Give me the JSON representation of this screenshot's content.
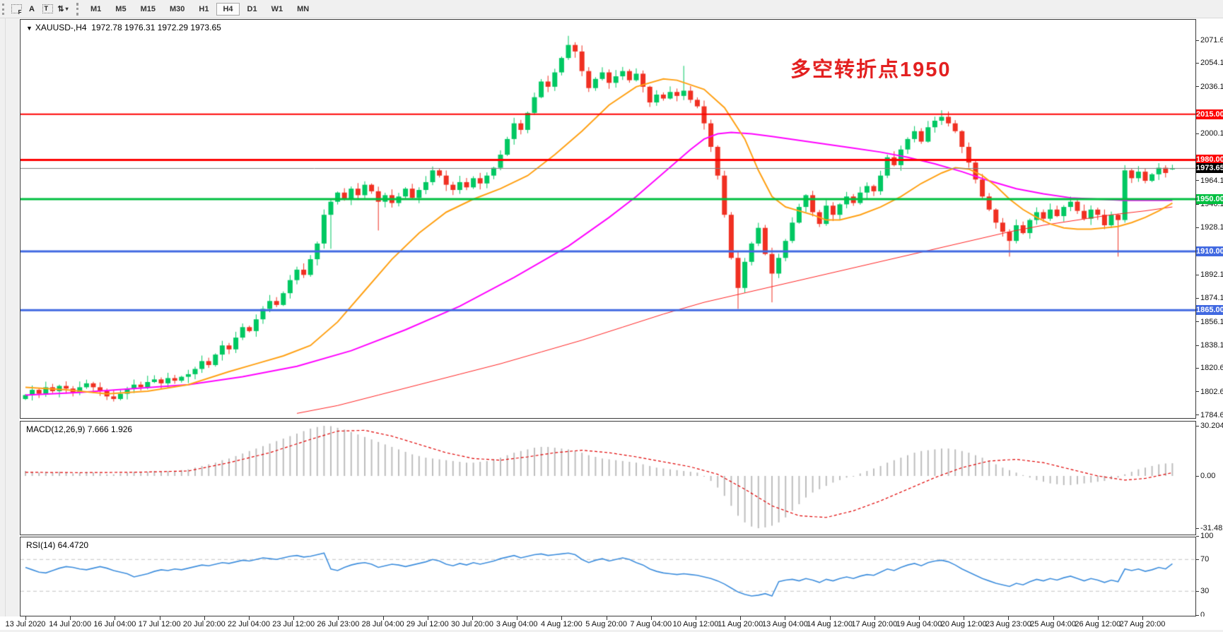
{
  "toolbar": {
    "grid_f_icon_label": "F",
    "letter_a_icon_label": "A",
    "text_t_icon_label": "T",
    "arrows_icon_glyph": "⇅",
    "dropdown_glyph": "▾",
    "timeframes": [
      "M1",
      "M5",
      "M15",
      "M30",
      "H1",
      "H4",
      "D1",
      "W1",
      "MN"
    ],
    "active_timeframe": "H4"
  },
  "chart": {
    "symbol_dropdown_glyph": "▼",
    "title_symbol": "XAUUSD-,H4",
    "title_values": "1972.78 1976.31 1972.29 1973.65",
    "annotation": {
      "text": "多空转折点1950",
      "color": "#e32020"
    }
  },
  "chart_data": {
    "type": "candlestick",
    "symbol": "XAUUSD-",
    "timeframe": "H4",
    "current_bar": {
      "open": 1972.78,
      "high": 1976.31,
      "low": 1972.29,
      "close": 1973.65
    },
    "price_axis_ticks": [
      "2071.60",
      "2054.10",
      "2036.10",
      "2000.10",
      "1964.10",
      "1946.10",
      "1928.10",
      "1892.10",
      "1874.10",
      "1856.10",
      "1838.10",
      "1820.60",
      "1802.60",
      "1784.60"
    ],
    "time_axis_labels": [
      "13 Jul 2020",
      "14 Jul 20:00",
      "16 Jul 04:00",
      "17 Jul 12:00",
      "20 Jul 20:00",
      "22 Jul 04:00",
      "23 Jul 12:00",
      "26 Jul 23:00",
      "28 Jul 04:00",
      "29 Jul 12:00",
      "30 Jul 20:00",
      "3 Aug 04:00",
      "4 Aug 12:00",
      "5 Aug 20:00",
      "7 Aug 04:00",
      "10 Aug 12:00",
      "11 Aug 20:00",
      "13 Aug 04:00",
      "14 Aug 12:00",
      "17 Aug 20:00",
      "19 Aug 04:00",
      "20 Aug 12:00",
      "23 Aug 23:00",
      "25 Aug 04:00",
      "26 Aug 12:00",
      "27 Aug 20:00"
    ],
    "horizontal_lines": [
      {
        "label": "2015.00",
        "price": 2015.0,
        "color": "#fe0000",
        "width": 2
      },
      {
        "label": "1980.00",
        "price": 1980.0,
        "color": "#fe0000",
        "width": 3
      },
      {
        "label": "1950.00",
        "price": 1950.0,
        "color": "#00bf40",
        "width": 3
      },
      {
        "label": "1910.00",
        "price": 1910.0,
        "color": "#4169e1",
        "width": 3
      },
      {
        "label": "1865.00",
        "price": 1865.0,
        "color": "#4169e1",
        "width": 3
      }
    ],
    "bid_line": {
      "label": "1973.65",
      "price": 1973.65,
      "line_color": "#7f7f7f",
      "badge_color": "#000000"
    },
    "candle_up_color": "#00c862",
    "candle_down_color": "#f03022",
    "candles": {
      "first_open": 1797,
      "closes": [
        1800,
        1804,
        1801,
        1806,
        1803,
        1807,
        1805,
        1802,
        1806,
        1809,
        1806,
        1803,
        1799,
        1797,
        1801,
        1805,
        1808,
        1806,
        1810,
        1812,
        1809,
        1813,
        1811,
        1814,
        1816,
        1820,
        1826,
        1823,
        1831,
        1838,
        1835,
        1844,
        1852,
        1849,
        1858,
        1866,
        1872,
        1869,
        1878,
        1888,
        1896,
        1892,
        1904,
        1916,
        1938,
        1948,
        1955,
        1950,
        1958,
        1953,
        1961,
        1956,
        1948,
        1953,
        1947,
        1952,
        1958,
        1951,
        1957,
        1963,
        1972,
        1968,
        1961,
        1957,
        1963,
        1959,
        1966,
        1962,
        1968,
        1974,
        1984,
        1996,
        2008,
        2003,
        2016,
        2028,
        2040,
        2036,
        2047,
        2058,
        2068,
        2063,
        2048,
        2035,
        2042,
        2047,
        2039,
        2044,
        2048,
        2041,
        2046,
        2036,
        2024,
        2030,
        2027,
        2032,
        2029,
        2033,
        2026,
        2021,
        2008,
        1990,
        1968,
        1938,
        1905,
        1882,
        1902,
        1916,
        1928,
        1908,
        1893,
        1905,
        1918,
        1932,
        1944,
        1953,
        1940,
        1931,
        1945,
        1938,
        1946,
        1952,
        1947,
        1955,
        1960,
        1956,
        1968,
        1982,
        1976,
        1988,
        1996,
        2002,
        1994,
        2005,
        2010,
        2013,
        2008,
        2002,
        1990,
        1978,
        1965,
        1952,
        1942,
        1932,
        1925,
        1918,
        1930,
        1924,
        1934,
        1940,
        1935,
        1942,
        1937,
        1944,
        1948,
        1941,
        1935,
        1942,
        1938,
        1930,
        1938,
        1934,
        1972,
        1966,
        1971,
        1964,
        1969,
        1974,
        1970,
        1973.65
      ],
      "overrides": {
        "45": {
          "low": 1912
        },
        "52": {
          "low": 1926
        },
        "80": {
          "high": 2075
        },
        "97": {
          "high": 2052
        },
        "105": {
          "low": 1866
        },
        "110": {
          "low": 1871
        },
        "135": {
          "high": 2018
        },
        "145": {
          "low": 1906
        },
        "161": {
          "low": 1906
        },
        "162": {
          "low": 1932,
          "high": 1976
        },
        "169": {
          "open": 1972.78,
          "high": 1976.31,
          "low": 1972.29
        }
      }
    },
    "moving_averages": [
      {
        "name": "fast-ma-orange",
        "color": "#ffa013",
        "width": 2,
        "points": [
          [
            0,
            1806
          ],
          [
            6,
            1804
          ],
          [
            12,
            1801
          ],
          [
            18,
            1803
          ],
          [
            24,
            1808
          ],
          [
            30,
            1818
          ],
          [
            34,
            1824
          ],
          [
            38,
            1830
          ],
          [
            42,
            1838
          ],
          [
            46,
            1856
          ],
          [
            50,
            1880
          ],
          [
            54,
            1904
          ],
          [
            58,
            1924
          ],
          [
            62,
            1940
          ],
          [
            66,
            1950
          ],
          [
            70,
            1958
          ],
          [
            74,
            1968
          ],
          [
            78,
            1984
          ],
          [
            82,
            2002
          ],
          [
            86,
            2022
          ],
          [
            90,
            2036
          ],
          [
            94,
            2042
          ],
          [
            96,
            2041
          ],
          [
            100,
            2034
          ],
          [
            103,
            2020
          ],
          [
            106,
            1996
          ],
          [
            108,
            1972
          ],
          [
            110,
            1952
          ],
          [
            112,
            1944
          ],
          [
            114,
            1941
          ],
          [
            116,
            1938
          ],
          [
            118,
            1934
          ],
          [
            120,
            1934
          ],
          [
            123,
            1938
          ],
          [
            126,
            1944
          ],
          [
            129,
            1952
          ],
          [
            132,
            1962
          ],
          [
            135,
            1970
          ],
          [
            137,
            1974
          ],
          [
            139,
            1973
          ],
          [
            141,
            1968
          ],
          [
            143,
            1960
          ],
          [
            145,
            1950
          ],
          [
            147,
            1942
          ],
          [
            149,
            1936
          ],
          [
            151,
            1931
          ],
          [
            153,
            1928
          ],
          [
            155,
            1927
          ],
          [
            157,
            1927
          ],
          [
            159,
            1928
          ],
          [
            161,
            1929
          ],
          [
            163,
            1932
          ],
          [
            165,
            1936
          ],
          [
            167,
            1941
          ],
          [
            169,
            1947
          ]
        ]
      },
      {
        "name": "mid-ma-magenta",
        "color": "#ff00ff",
        "width": 2,
        "points": [
          [
            0,
            1800
          ],
          [
            8,
            1802
          ],
          [
            16,
            1805
          ],
          [
            24,
            1808
          ],
          [
            32,
            1814
          ],
          [
            40,
            1822
          ],
          [
            48,
            1834
          ],
          [
            56,
            1850
          ],
          [
            64,
            1868
          ],
          [
            72,
            1890
          ],
          [
            80,
            1914
          ],
          [
            86,
            1936
          ],
          [
            90,
            1952
          ],
          [
            94,
            1970
          ],
          [
            98,
            1988
          ],
          [
            100,
            1996
          ],
          [
            102,
            2000
          ],
          [
            104,
            2001
          ],
          [
            107,
            2000
          ],
          [
            110,
            1998
          ],
          [
            114,
            1995
          ],
          [
            118,
            1992
          ],
          [
            122,
            1989
          ],
          [
            126,
            1986
          ],
          [
            130,
            1982
          ],
          [
            134,
            1977
          ],
          [
            138,
            1971
          ],
          [
            142,
            1964
          ],
          [
            146,
            1958
          ],
          [
            150,
            1954
          ],
          [
            154,
            1951
          ],
          [
            158,
            1950
          ],
          [
            162,
            1949
          ],
          [
            166,
            1949
          ],
          [
            169,
            1949
          ]
        ]
      },
      {
        "name": "slow-ma-red",
        "color": "#ff2222",
        "width": 1,
        "points": [
          [
            40,
            1786
          ],
          [
            46,
            1792
          ],
          [
            52,
            1800
          ],
          [
            58,
            1808
          ],
          [
            64,
            1816
          ],
          [
            70,
            1824
          ],
          [
            76,
            1833
          ],
          [
            82,
            1842
          ],
          [
            88,
            1852
          ],
          [
            94,
            1862
          ],
          [
            100,
            1871
          ],
          [
            105,
            1877
          ],
          [
            110,
            1883
          ],
          [
            115,
            1889
          ],
          [
            120,
            1895
          ],
          [
            125,
            1901
          ],
          [
            130,
            1907
          ],
          [
            135,
            1913
          ],
          [
            140,
            1919
          ],
          [
            145,
            1925
          ],
          [
            150,
            1930
          ],
          [
            155,
            1934
          ],
          [
            160,
            1938
          ],
          [
            165,
            1941
          ],
          [
            169,
            1944
          ]
        ]
      }
    ],
    "macd": {
      "title": "MACD(12,26,9) 7.666 1.926",
      "params": "12,26,9",
      "current_macd": 7.666,
      "current_signal": 1.926,
      "axis_labels": [
        "30.204",
        "0.00",
        "-31.482"
      ],
      "axis_values": [
        30.204,
        0,
        -31.482
      ],
      "histogram_color": "#bdbdbd",
      "signal_color": "#e00000",
      "histogram": [
        3,
        2.5,
        2,
        2.5,
        2,
        2.5,
        2,
        1.5,
        2,
        2.5,
        2,
        1.5,
        1,
        1,
        1.5,
        2,
        2.5,
        2,
        2.5,
        3,
        2.5,
        3,
        3,
        3.5,
        4,
        5,
        6,
        7,
        8,
        9.5,
        10.5,
        12,
        13.5,
        15,
        16.5,
        18,
        19.5,
        21,
        22.5,
        24,
        25.5,
        27,
        28.5,
        29.5,
        30.2,
        30,
        29,
        28,
        26.5,
        25,
        23.5,
        22,
        20.5,
        19,
        17.5,
        16,
        14.5,
        13,
        12,
        11,
        10.5,
        10,
        9.5,
        9,
        8.5,
        8,
        8,
        8.5,
        9,
        10,
        11,
        12.5,
        14,
        15,
        16,
        17,
        17.5,
        17.5,
        17,
        16.5,
        16,
        15,
        14,
        12.5,
        11.5,
        10.5,
        10,
        9.5,
        9,
        8.5,
        8,
        7,
        6,
        5,
        4.5,
        4,
        3.5,
        3,
        2.5,
        2,
        0,
        -3,
        -7,
        -12,
        -18,
        -24,
        -28,
        -30.5,
        -31.5,
        -31,
        -30,
        -28,
        -25,
        -21,
        -17,
        -13,
        -10,
        -8,
        -6,
        -4,
        -2.5,
        -1,
        0,
        1.5,
        3,
        4.5,
        6,
        8,
        9.5,
        11,
        12.5,
        14,
        15,
        15.5,
        16,
        16.5,
        16.5,
        16,
        15,
        14,
        12.5,
        11,
        9,
        7,
        5,
        3.5,
        2,
        0.5,
        -1,
        -2.5,
        -3.5,
        -4.5,
        -5,
        -5.5,
        -5.5,
        -5,
        -4.5,
        -4,
        -3.5,
        -3,
        -2,
        -1,
        1,
        2.5,
        4,
        5,
        6,
        7,
        7.5,
        7.666
      ],
      "signal_points": [
        [
          0,
          2.2
        ],
        [
          8,
          2
        ],
        [
          16,
          2.2
        ],
        [
          24,
          3
        ],
        [
          30,
          8
        ],
        [
          36,
          14
        ],
        [
          42,
          22
        ],
        [
          46,
          27
        ],
        [
          50,
          27.5
        ],
        [
          54,
          24
        ],
        [
          58,
          19
        ],
        [
          62,
          14
        ],
        [
          66,
          10.5
        ],
        [
          70,
          9.5
        ],
        [
          74,
          11.5
        ],
        [
          78,
          14
        ],
        [
          82,
          15.5
        ],
        [
          86,
          14
        ],
        [
          90,
          11.5
        ],
        [
          94,
          8.5
        ],
        [
          98,
          5.5
        ],
        [
          102,
          1
        ],
        [
          106,
          -8
        ],
        [
          110,
          -18
        ],
        [
          114,
          -24
        ],
        [
          118,
          -25
        ],
        [
          122,
          -21
        ],
        [
          126,
          -15
        ],
        [
          130,
          -8
        ],
        [
          134,
          -1
        ],
        [
          138,
          5
        ],
        [
          142,
          9
        ],
        [
          146,
          10
        ],
        [
          150,
          8
        ],
        [
          154,
          4
        ],
        [
          158,
          0
        ],
        [
          162,
          -2.5
        ],
        [
          165,
          -1.5
        ],
        [
          169,
          1.926
        ]
      ]
    },
    "rsi": {
      "title": "RSI(14) 64.4720",
      "period": 14,
      "current": 64.472,
      "line_color": "#3e8edd",
      "axis_labels": [
        "100",
        "70",
        "30",
        "0"
      ],
      "axis_values": [
        100,
        70,
        30,
        0
      ],
      "dashed_levels": [
        70,
        30
      ],
      "values": [
        60,
        57,
        54,
        53,
        56,
        59,
        61,
        60,
        58,
        57,
        59,
        61,
        59,
        56,
        54,
        52,
        48,
        50,
        52,
        55,
        57,
        56,
        58,
        57,
        59,
        61,
        63,
        62,
        64,
        66,
        65,
        67,
        69,
        68,
        70,
        72,
        71,
        70,
        72,
        74,
        75,
        73,
        74,
        76,
        78,
        58,
        56,
        60,
        63,
        65,
        66,
        64,
        60,
        62,
        64,
        63,
        61,
        63,
        65,
        67,
        70,
        68,
        64,
        62,
        65,
        63,
        66,
        64,
        66,
        68,
        71,
        73,
        75,
        72,
        74,
        76,
        77,
        75,
        76,
        77,
        78,
        76,
        70,
        66,
        69,
        71,
        68,
        70,
        72,
        70,
        66,
        63,
        58,
        55,
        53,
        52,
        51,
        52,
        51,
        50,
        48,
        46,
        43,
        39,
        34,
        29,
        26,
        24,
        25,
        27,
        24,
        42,
        44,
        45,
        43,
        46,
        44,
        41,
        45,
        43,
        46,
        48,
        46,
        49,
        51,
        50,
        54,
        58,
        56,
        60,
        63,
        65,
        62,
        66,
        68,
        69,
        67,
        63,
        58,
        54,
        50,
        46,
        43,
        40,
        38,
        36,
        40,
        38,
        42,
        45,
        43,
        46,
        44,
        47,
        49,
        46,
        43,
        46,
        44,
        41,
        44,
        42,
        58,
        56,
        58,
        55,
        57,
        60,
        58,
        64.47
      ]
    }
  }
}
